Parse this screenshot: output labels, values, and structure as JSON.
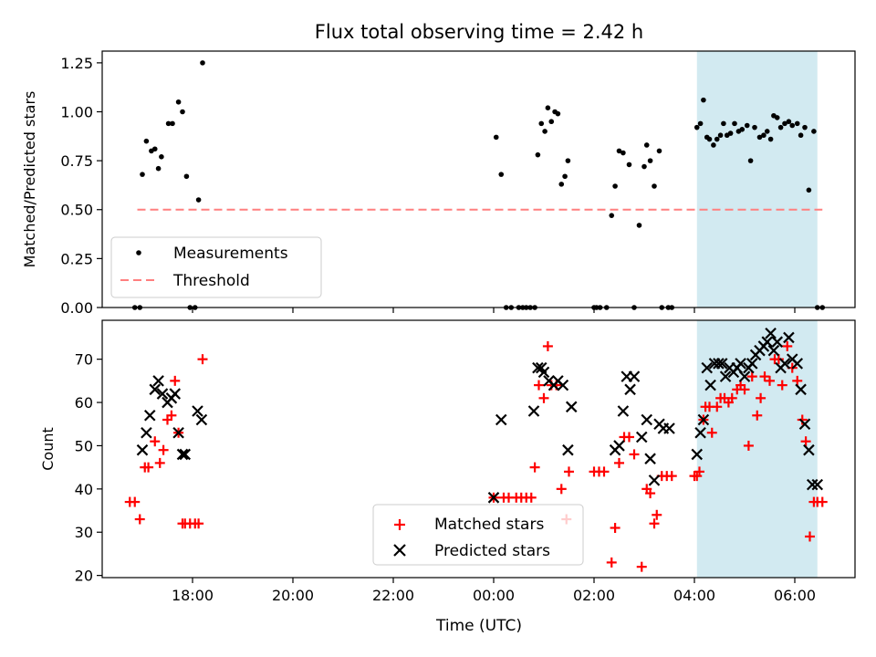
{
  "title": "Flux total observing time = 2.42 h",
  "colors": {
    "measurements": "#000000",
    "threshold": "#ff7f7f",
    "matched": "#ff0000",
    "predicted": "#000000",
    "highlight": "#add8e6"
  },
  "chart_data": [
    {
      "type": "scatter",
      "ylabel": "Matched/Predicted stars",
      "xlim": [
        16.2,
        31.2
      ],
      "ylim": [
        0.0,
        1.31
      ],
      "yticks": [
        0.0,
        0.25,
        0.5,
        0.75,
        1.0,
        1.25
      ],
      "ytick_labels": [
        "0.00",
        "0.25",
        "0.50",
        "0.75",
        "1.00",
        "1.25"
      ],
      "highlight": {
        "x": [
          28.05,
          30.45
        ]
      },
      "legend": {
        "placement": "lower-left",
        "entries": [
          "Measurements",
          "Threshold"
        ]
      },
      "threshold": {
        "name": "Threshold",
        "y": 0.5,
        "x": [
          16.9,
          30.55
        ]
      },
      "series": [
        {
          "name": "Measurements",
          "x": [
            16.85,
            16.95,
            17.0,
            17.08,
            17.18,
            17.25,
            17.32,
            17.38,
            17.52,
            17.6,
            17.72,
            17.8,
            17.88,
            17.95,
            18.05,
            18.12,
            18.2,
            24.05,
            24.15,
            24.25,
            24.35,
            24.5,
            24.58,
            24.65,
            24.73,
            24.82,
            24.88,
            24.95,
            25.02,
            25.08,
            25.15,
            25.22,
            25.28,
            25.35,
            25.42,
            25.48,
            26.0,
            26.05,
            26.12,
            26.25,
            26.35,
            26.42,
            26.5,
            26.58,
            26.7,
            26.8,
            26.9,
            27.0,
            27.05,
            27.12,
            27.2,
            27.3,
            27.35,
            27.48,
            27.55,
            28.05,
            28.12,
            28.18,
            28.25,
            28.3,
            28.38,
            28.45,
            28.52,
            28.58,
            28.65,
            28.72,
            28.8,
            28.88,
            28.95,
            29.05,
            29.12,
            29.2,
            29.3,
            29.38,
            29.45,
            29.52,
            29.58,
            29.65,
            29.72,
            29.8,
            29.88,
            29.95,
            30.05,
            30.12,
            30.2,
            30.28,
            30.38,
            30.45,
            30.55
          ],
          "y": [
            0.0,
            0.0,
            0.68,
            0.85,
            0.8,
            0.81,
            0.71,
            0.77,
            0.94,
            0.94,
            1.05,
            1.0,
            0.67,
            0.0,
            0.0,
            0.55,
            1.25,
            0.87,
            0.68,
            0.0,
            0.0,
            0.0,
            0.0,
            0.0,
            0.0,
            0.0,
            0.78,
            0.94,
            0.9,
            1.02,
            0.95,
            1.0,
            0.99,
            0.63,
            0.67,
            0.75,
            0.0,
            0.0,
            0.0,
            0.0,
            0.47,
            0.62,
            0.8,
            0.79,
            0.73,
            0.0,
            0.42,
            0.72,
            0.83,
            0.75,
            0.62,
            0.8,
            0.0,
            0.0,
            0.0,
            0.92,
            0.94,
            1.06,
            0.87,
            0.86,
            0.83,
            0.86,
            0.88,
            0.94,
            0.88,
            0.89,
            0.94,
            0.9,
            0.91,
            0.93,
            0.75,
            0.92,
            0.87,
            0.88,
            0.9,
            0.86,
            0.98,
            0.97,
            0.92,
            0.94,
            0.95,
            0.93,
            0.94,
            0.88,
            0.92,
            0.6,
            0.9,
            0.0,
            0.0
          ]
        }
      ]
    },
    {
      "type": "scatter",
      "ylabel": "Count",
      "xlabel": "Time (UTC)",
      "xlim": [
        16.2,
        31.2
      ],
      "ylim": [
        19.5,
        79.0
      ],
      "yticks": [
        20,
        30,
        40,
        50,
        60,
        70
      ],
      "ytick_labels": [
        "20",
        "30",
        "40",
        "50",
        "60",
        "70"
      ],
      "xticks": [
        18,
        20,
        22,
        24,
        26,
        28,
        30
      ],
      "xtick_labels": [
        "18:00",
        "20:00",
        "22:00",
        "00:00",
        "02:00",
        "04:00",
        "06:00"
      ],
      "highlight": {
        "x": [
          28.05,
          30.45
        ]
      },
      "legend": {
        "placement": "lower-center",
        "entries": [
          "Matched stars",
          "Predicted stars"
        ]
      },
      "series": [
        {
          "name": "Matched stars",
          "x": [
            16.75,
            16.85,
            16.95,
            17.05,
            17.12,
            17.25,
            17.35,
            17.42,
            17.5,
            17.58,
            17.65,
            17.72,
            17.8,
            17.85,
            17.95,
            18.05,
            18.12,
            18.2,
            24.0,
            24.2,
            24.3,
            24.45,
            24.55,
            24.65,
            24.75,
            24.82,
            24.9,
            25.0,
            25.08,
            25.15,
            25.25,
            25.35,
            25.45,
            25.5,
            26.0,
            26.1,
            26.2,
            26.35,
            26.42,
            26.5,
            26.6,
            26.7,
            26.8,
            26.95,
            27.05,
            27.12,
            27.2,
            27.25,
            27.35,
            27.45,
            27.55,
            28.0,
            28.05,
            28.1,
            28.18,
            28.22,
            28.3,
            28.35,
            28.45,
            28.52,
            28.6,
            28.68,
            28.75,
            28.85,
            28.92,
            29.0,
            29.08,
            29.15,
            29.25,
            29.32,
            29.4,
            29.5,
            29.6,
            29.68,
            29.75,
            29.85,
            29.95,
            30.05,
            30.15,
            30.22,
            30.3,
            30.38,
            30.45,
            30.55
          ],
          "y": [
            37,
            37,
            33,
            45,
            45,
            51,
            46,
            49,
            56,
            57,
            65,
            53,
            32,
            32,
            32,
            32,
            32,
            70,
            38,
            38,
            38,
            38,
            38,
            38,
            38,
            45,
            64,
            61,
            73,
            64,
            64,
            40,
            33,
            44,
            44,
            44,
            44,
            23,
            31,
            46,
            52,
            52,
            48,
            22,
            40,
            39,
            32,
            34,
            43,
            43,
            43,
            43,
            43,
            44,
            56,
            59,
            59,
            53,
            59,
            61,
            61,
            60,
            61,
            63,
            64,
            63,
            50,
            66,
            57,
            61,
            66,
            65,
            70,
            70,
            64,
            73,
            68,
            65,
            56,
            51,
            29,
            37,
            37,
            37
          ],
          "markers": "+"
        },
        {
          "name": "Predicted stars",
          "x": [
            17.0,
            17.08,
            17.15,
            17.25,
            17.32,
            17.4,
            17.5,
            17.58,
            17.65,
            17.72,
            17.8,
            17.85,
            18.1,
            18.18,
            24.0,
            24.15,
            24.8,
            24.88,
            24.95,
            25.0,
            25.1,
            25.2,
            25.28,
            25.38,
            25.48,
            25.55,
            26.42,
            26.5,
            26.58,
            26.65,
            26.72,
            26.8,
            26.95,
            27.05,
            27.12,
            27.2,
            27.3,
            27.38,
            27.5,
            28.05,
            28.12,
            28.18,
            28.25,
            28.32,
            28.4,
            28.48,
            28.55,
            28.62,
            28.7,
            28.78,
            28.85,
            28.92,
            29.0,
            29.08,
            29.15,
            29.22,
            29.3,
            29.38,
            29.45,
            29.52,
            29.58,
            29.65,
            29.72,
            29.8,
            29.88,
            29.95,
            30.05,
            30.12,
            30.2,
            30.28,
            30.35,
            30.45
          ],
          "y": [
            49,
            53,
            57,
            63,
            65,
            62,
            60,
            61,
            62,
            53,
            48,
            48,
            58,
            56,
            38,
            56,
            58,
            68,
            68,
            67,
            65,
            64,
            65,
            64,
            49,
            59,
            49,
            50,
            58,
            66,
            63,
            66,
            52,
            56,
            47,
            42,
            55,
            54,
            54,
            48,
            53,
            56,
            68,
            64,
            69,
            69,
            69,
            66,
            68,
            67,
            68,
            69,
            66,
            68,
            69,
            71,
            72,
            73,
            74,
            76,
            72,
            74,
            68,
            69,
            75,
            70,
            69,
            63,
            55,
            49,
            41,
            41
          ],
          "markers": "x"
        }
      ]
    }
  ]
}
